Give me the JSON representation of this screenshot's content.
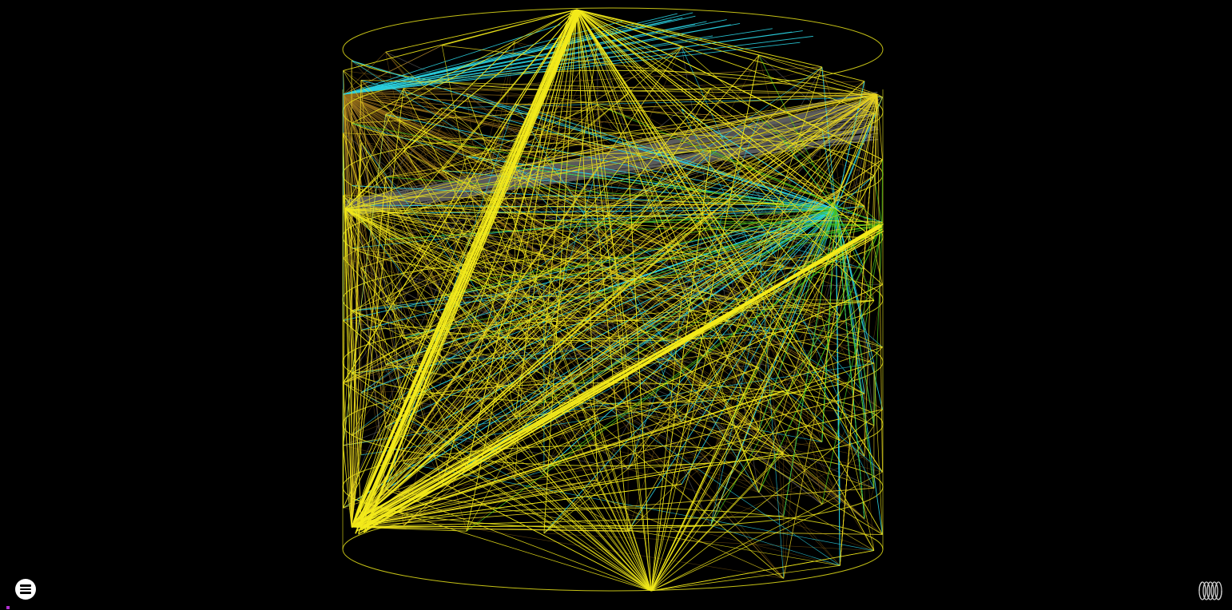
{
  "app": {
    "background": "#000000"
  },
  "controls": {
    "menu_icon": "hamburger-menu-icon",
    "layout_icon": "helix-coil-icon"
  },
  "graph": {
    "layout": "helix-cylinder",
    "edge_colors": {
      "yellow": "#f2ea1a",
      "gold": "#e8d420",
      "brown": "#8a6414",
      "tan": "#a9822a",
      "cyan": "#2ad0e0",
      "green": "#46c01c",
      "gray": "#5c5c5c"
    },
    "ring_color": "#e6e21a"
  }
}
